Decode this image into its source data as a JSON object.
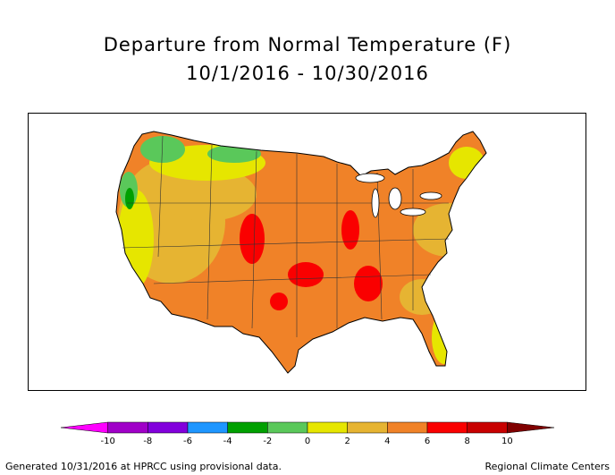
{
  "title": {
    "line1": "Departure from Normal Temperature (F)",
    "line2": "10/1/2016 - 10/30/2016"
  },
  "legend": {
    "ticks": [
      "-10",
      "-8",
      "-6",
      "-4",
      "-2",
      "0",
      "2",
      "4",
      "6",
      "8",
      "10"
    ],
    "colors": [
      "#ff00ff",
      "#a000c8",
      "#8200dc",
      "#1e96ff",
      "#00a000",
      "#5ac85a",
      "#e6e600",
      "#e6b432",
      "#f08228",
      "#fa0000",
      "#c80000",
      "#800000"
    ]
  },
  "footer": {
    "left": "Generated 10/31/2016 at HPRCC using provisional data.",
    "right": "Regional Climate Centers"
  }
}
